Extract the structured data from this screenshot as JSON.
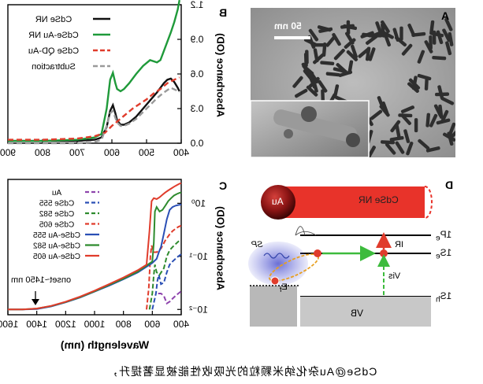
{
  "caption": "CdSe@Au杂化纳米颗粒的光吸收性能被显著提升，",
  "panel_labels": {
    "a": "A",
    "b": "B",
    "c": "C",
    "d": "D"
  },
  "panel_a": {
    "scale_bar_label": "50 nm"
  },
  "panel_d": {
    "rod_label": "CdSe NR",
    "tip_label": "Au",
    "level_1pe": "1P",
    "level_1pe_sub": "e",
    "level_1se": "1S",
    "level_1se_sub": "e",
    "level_1sh": "1S",
    "level_1sh_sub": "h",
    "ir_label": "IR",
    "vis_label": "Vis",
    "sp_label": "SP",
    "ef_label": "E",
    "ef_sub": "f",
    "vb_label": "VB"
  },
  "chart_data": [
    {
      "panel": "B",
      "type": "line",
      "xlabel": "",
      "ylabel": "Absorbance (OD)",
      "x_ticks": [
        900,
        800,
        700,
        600,
        500,
        400
      ],
      "y_ticks": [
        "0.0",
        "0.3",
        "0.6",
        "0.9",
        "1.2"
      ],
      "xlim": [
        400,
        900
      ],
      "ylim": [
        0,
        1.2
      ],
      "x_axis_reversed": true,
      "legend_position": "top-left",
      "series": [
        {
          "name": "CdSe NR",
          "color": "#111111",
          "style": "solid",
          "x": [
            900,
            800,
            700,
            650,
            630,
            615,
            605,
            597,
            590,
            585,
            575,
            565,
            550,
            530,
            510,
            490,
            470,
            460,
            450,
            440,
            430,
            420,
            410,
            405
          ],
          "y": [
            0.02,
            0.02,
            0.02,
            0.03,
            0.05,
            0.14,
            0.28,
            0.33,
            0.26,
            0.2,
            0.16,
            0.16,
            0.18,
            0.23,
            0.3,
            0.37,
            0.44,
            0.48,
            0.52,
            0.55,
            0.56,
            0.53,
            0.48,
            0.45
          ]
        },
        {
          "name": "CdSe-Au NR",
          "color": "#1f9a3a",
          "style": "solid",
          "x": [
            900,
            800,
            700,
            650,
            630,
            615,
            605,
            597,
            590,
            585,
            575,
            565,
            550,
            530,
            510,
            490,
            470,
            460,
            450,
            440,
            430,
            420,
            410,
            405
          ],
          "y": [
            0.02,
            0.02,
            0.03,
            0.05,
            0.08,
            0.3,
            0.55,
            0.61,
            0.52,
            0.47,
            0.45,
            0.47,
            0.52,
            0.6,
            0.67,
            0.72,
            0.7,
            0.72,
            0.8,
            0.88,
            0.96,
            1.05,
            1.16,
            1.24
          ]
        },
        {
          "name": "CdSe QD-Au",
          "color": "#e03c2c",
          "style": "dashed",
          "x": [
            900,
            800,
            700,
            650,
            620,
            600,
            580,
            560,
            540,
            520,
            500,
            480,
            460,
            440,
            420,
            405
          ],
          "y": [
            0.03,
            0.03,
            0.04,
            0.06,
            0.09,
            0.15,
            0.2,
            0.25,
            0.3,
            0.34,
            0.38,
            0.43,
            0.47,
            0.52,
            0.55,
            0.57
          ]
        },
        {
          "name": "Subtraction",
          "color": "#9a9a9a",
          "style": "dashed",
          "x": [
            900,
            800,
            700,
            650,
            630,
            615,
            605,
            597,
            590,
            585,
            575,
            565,
            550,
            530,
            510,
            490,
            470,
            450,
            430,
            415,
            405
          ],
          "y": [
            0.0,
            0.0,
            0.0,
            0.01,
            0.03,
            0.15,
            0.26,
            0.28,
            0.22,
            0.18,
            0.15,
            0.15,
            0.17,
            0.21,
            0.27,
            0.33,
            0.39,
            0.44,
            0.48,
            0.46,
            0.44
          ]
        }
      ]
    },
    {
      "panel": "C",
      "type": "line",
      "xlabel": "Wavelength (nm)",
      "ylabel": "Absorbance (OD)",
      "x_ticks": [
        1600,
        1400,
        1200,
        1000,
        800,
        600,
        400
      ],
      "y_ticks": [
        "10⁻²",
        "10⁻¹",
        "10⁰"
      ],
      "xlim": [
        400,
        1600
      ],
      "ylim_log10": [
        -2.1,
        0.45
      ],
      "y_scale": "log",
      "x_axis_reversed": true,
      "legend_position": "top-left",
      "annotation": "onset~1450 nm",
      "series": [
        {
          "name": "Au",
          "color": "#8e44ad",
          "style": "dashed",
          "x": [
            560,
            540,
            520,
            500,
            480,
            460,
            440,
            420,
            400
          ],
          "y": [
            0.02,
            0.02,
            0.018,
            0.013,
            0.014,
            0.016,
            0.018,
            0.02,
            0.022
          ]
        },
        {
          "name": "CdSe 555",
          "color": "#2a4fb5",
          "style": "dashed",
          "x": [
            600,
            575,
            565,
            555,
            540,
            520,
            500,
            480,
            460,
            440,
            420,
            400
          ],
          "y": [
            0.01,
            0.02,
            0.035,
            0.045,
            0.03,
            0.032,
            0.05,
            0.07,
            0.08,
            0.09,
            0.1,
            0.11
          ]
        },
        {
          "name": "CdSe 582",
          "color": "#2e8b2e",
          "style": "dashed",
          "x": [
            620,
            600,
            590,
            582,
            570,
            550,
            520,
            500,
            480,
            460,
            440,
            420,
            400
          ],
          "y": [
            0.01,
            0.02,
            0.045,
            0.07,
            0.05,
            0.045,
            0.06,
            0.1,
            0.13,
            0.15,
            0.17,
            0.19,
            0.2
          ]
        },
        {
          "name": "CdSe 605",
          "color": "#e03c2c",
          "style": "dashed",
          "x": [
            640,
            625,
            613,
            605,
            590,
            570,
            540,
            510,
            480,
            460,
            440,
            420,
            400
          ],
          "y": [
            0.01,
            0.025,
            0.1,
            0.16,
            0.12,
            0.12,
            0.14,
            0.2,
            0.26,
            0.3,
            0.33,
            0.36,
            0.38
          ]
        },
        {
          "name": "CdSe-Au 555",
          "color": "#2a4fb5",
          "style": "solid",
          "x": [
            1600,
            1500,
            1400,
            1300,
            1200,
            1100,
            1000,
            900,
            800,
            700,
            600,
            570,
            555,
            540,
            520,
            500,
            480,
            460,
            440,
            420,
            400
          ],
          "y": [
            0.01,
            0.01,
            0.0102,
            0.0114,
            0.0136,
            0.0168,
            0.0217,
            0.028,
            0.037,
            0.05,
            0.075,
            0.09,
            0.12,
            0.15,
            0.27,
            0.5,
            0.75,
            0.85,
            0.9,
            0.93,
            0.95
          ]
        },
        {
          "name": "CdSe-Au 582",
          "color": "#2e8b2e",
          "style": "solid",
          "x": [
            1600,
            1500,
            1400,
            1300,
            1200,
            1100,
            1000,
            900,
            800,
            700,
            600,
            590,
            582,
            570,
            550,
            530,
            510,
            490,
            470,
            450,
            430,
            410,
            400
          ],
          "y": [
            0.01,
            0.01,
            0.0104,
            0.0116,
            0.0138,
            0.0171,
            0.022,
            0.029,
            0.038,
            0.052,
            0.08,
            0.18,
            0.7,
            0.85,
            0.7,
            0.75,
            0.9,
            1.1,
            1.25,
            1.4,
            1.5,
            1.58,
            1.6
          ]
        },
        {
          "name": "CdSe-Au 605",
          "color": "#e03c2c",
          "style": "solid",
          "x": [
            1600,
            1500,
            1400,
            1300,
            1200,
            1100,
            1000,
            900,
            800,
            700,
            640,
            620,
            605,
            590,
            570,
            550,
            530,
            510,
            490,
            470,
            450,
            430,
            410,
            400
          ],
          "y": [
            0.01,
            0.01,
            0.0104,
            0.0117,
            0.014,
            0.0175,
            0.0226,
            0.03,
            0.04,
            0.055,
            0.07,
            0.3,
            1.1,
            1.25,
            1.2,
            1.3,
            1.45,
            1.6,
            1.75,
            1.9,
            2.05,
            2.2,
            2.35,
            2.4
          ]
        }
      ]
    }
  ]
}
